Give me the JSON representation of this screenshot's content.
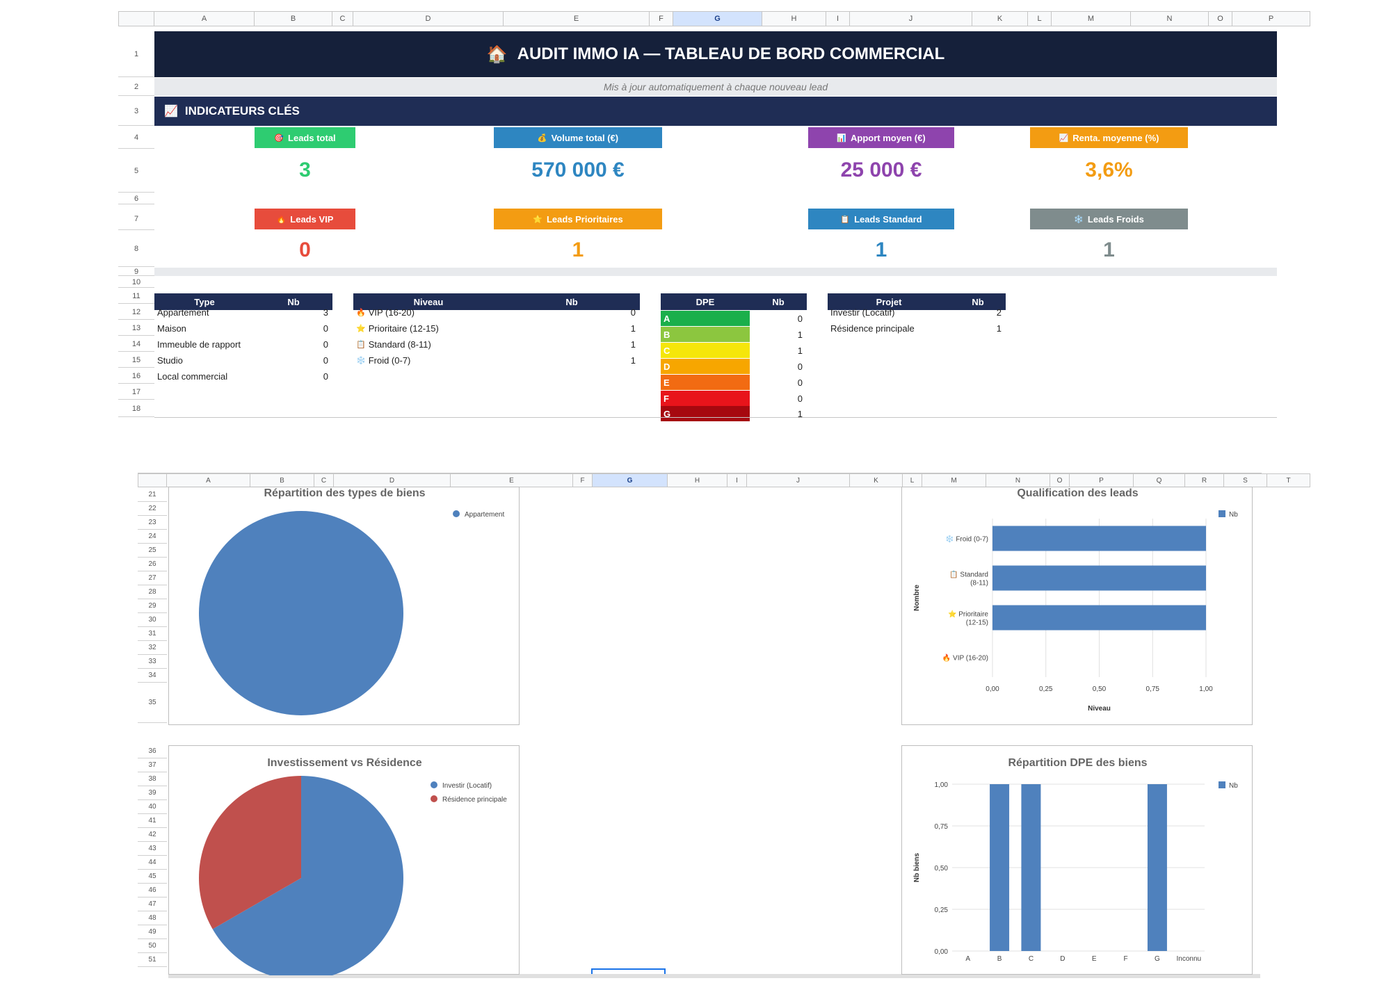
{
  "sheet1": {
    "columns": [
      "A",
      "B",
      "C",
      "D",
      "E",
      "F",
      "G",
      "H",
      "I",
      "J",
      "K",
      "L",
      "M",
      "N",
      "O",
      "P"
    ],
    "selected_column": "G",
    "rows": [
      "1",
      "2",
      "3",
      "4",
      "5",
      "6",
      "7",
      "8",
      "9",
      "10",
      "11",
      "12",
      "13",
      "14",
      "15",
      "16",
      "17",
      "18"
    ],
    "title": "AUDIT IMMO IA — TABLEAU DE BORD COMMERCIAL",
    "title_icon": "house-icon",
    "subtitle": "Mis à jour automatiquement à chaque nouveau lead",
    "section_title": "INDICATEURS CLÉS",
    "section_icon": "chart-icon",
    "kpis_row1": [
      {
        "icon": "🎯",
        "label": "Leads total",
        "value": "3",
        "color": "#2ecc71"
      },
      {
        "icon": "💰",
        "label": "Volume total (€)",
        "value": "570 000 €",
        "color": "#2e86c1"
      },
      {
        "icon": "📊",
        "label": "Apport moyen (€)",
        "value": "25 000 €",
        "color": "#8e44ad"
      },
      {
        "icon": "📈",
        "label": "Renta. moyenne (%)",
        "value": "3,6%",
        "color": "#f39c12"
      }
    ],
    "kpis_row2": [
      {
        "icon": "🔥",
        "label": "Leads VIP",
        "value": "0",
        "color": "#e74c3c"
      },
      {
        "icon": "⭐",
        "label": "Leads Prioritaires",
        "value": "1",
        "color": "#f39c12"
      },
      {
        "icon": "📋",
        "label": "Leads Standard",
        "value": "1",
        "color": "#2e86c1"
      },
      {
        "icon": "❄️",
        "label": "Leads Froids",
        "value": "1",
        "color": "#7f8c8d"
      }
    ],
    "table_type": {
      "headers": [
        "Type",
        "Nb"
      ],
      "rows": [
        [
          "Appartement",
          "3"
        ],
        [
          "Maison",
          "0"
        ],
        [
          "Immeuble de rapport",
          "0"
        ],
        [
          "Studio",
          "0"
        ],
        [
          "Local commercial",
          "0"
        ]
      ]
    },
    "table_niveau": {
      "headers": [
        "Niveau",
        "Nb"
      ],
      "rows": [
        [
          "🔥",
          "VIP (16-20)",
          "0"
        ],
        [
          "⭐",
          "Prioritaire (12-15)",
          "1"
        ],
        [
          "📋",
          "Standard (8-11)",
          "1"
        ],
        [
          "❄️",
          "Froid (0-7)",
          "1"
        ]
      ]
    },
    "table_dpe": {
      "headers": [
        "DPE",
        "Nb"
      ],
      "rows": [
        [
          "A",
          "0",
          "#1aaf4b"
        ],
        [
          "B",
          "1",
          "#8cc63f"
        ],
        [
          "C",
          "1",
          "#f5e60a"
        ],
        [
          "D",
          "0",
          "#f7a600"
        ],
        [
          "E",
          "0",
          "#f26b12"
        ],
        [
          "F",
          "0",
          "#e8141b"
        ],
        [
          "G",
          "1",
          "#a6080f"
        ]
      ]
    },
    "table_projet": {
      "headers": [
        "Projet",
        "Nb"
      ],
      "rows": [
        [
          "Investir (Locatif)",
          "2"
        ],
        [
          "Résidence principale",
          "1"
        ]
      ]
    }
  },
  "sheet2": {
    "columns": [
      "A",
      "B",
      "C",
      "D",
      "E",
      "F",
      "G",
      "H",
      "I",
      "J",
      "K",
      "L",
      "M",
      "N",
      "O",
      "P",
      "Q",
      "R",
      "S",
      "T"
    ],
    "selected_column": "G",
    "rows_top": [
      "21",
      "22",
      "23",
      "24",
      "25",
      "26",
      "27",
      "28",
      "29",
      "30",
      "31",
      "32",
      "33",
      "34",
      "35"
    ],
    "rows_bottom": [
      "36",
      "37",
      "38",
      "39",
      "40",
      "41",
      "42",
      "43",
      "44",
      "45",
      "46",
      "47",
      "48",
      "49",
      "50",
      "51"
    ]
  },
  "chart_data": [
    {
      "type": "pie",
      "title": "Répartition des types de biens",
      "categories": [
        "Appartement"
      ],
      "values": [
        3
      ],
      "colors": [
        "#4f81bd"
      ]
    },
    {
      "type": "bar",
      "orientation": "horizontal",
      "title": "Qualification des leads",
      "categories": [
        "VIP (16-20)",
        "Prioritaire (12-15)",
        "Standard (8-11)",
        "Froid (0-7)"
      ],
      "category_labels": [
        [
          "🔥 VIP (16-20)"
        ],
        [
          "⭐ Prioritaire",
          "(12-15)"
        ],
        [
          "📋 Standard",
          "(8-11)"
        ],
        [
          "❄️ Froid (0-7)"
        ]
      ],
      "series": [
        {
          "name": "Nb",
          "values": [
            0,
            1,
            1,
            1
          ]
        }
      ],
      "xlabel": "Niveau",
      "ylabel": "Nombre",
      "xlim": [
        0,
        1
      ],
      "ticks": [
        "0,00",
        "0,25",
        "0,50",
        "0,75",
        "1,00"
      ],
      "legend": "top-right",
      "grid": true
    },
    {
      "type": "pie",
      "title": "Investissement vs Résidence",
      "categories": [
        "Investir (Locatif)",
        "Résidence principale"
      ],
      "values": [
        2,
        1
      ],
      "colors": [
        "#4f81bd",
        "#c0504d"
      ]
    },
    {
      "type": "bar",
      "orientation": "vertical",
      "title": "Répartition DPE des biens",
      "categories": [
        "A",
        "B",
        "C",
        "D",
        "E",
        "F",
        "G",
        "Inconnu"
      ],
      "series": [
        {
          "name": "Nb",
          "values": [
            0,
            1,
            1,
            0,
            0,
            0,
            1,
            0
          ]
        }
      ],
      "ylabel": "Nb biens",
      "ylim": [
        0,
        1
      ],
      "ticks": [
        "0,00",
        "0,25",
        "0,50",
        "0,75",
        "1,00"
      ],
      "legend": "top-right",
      "grid": true
    }
  ]
}
